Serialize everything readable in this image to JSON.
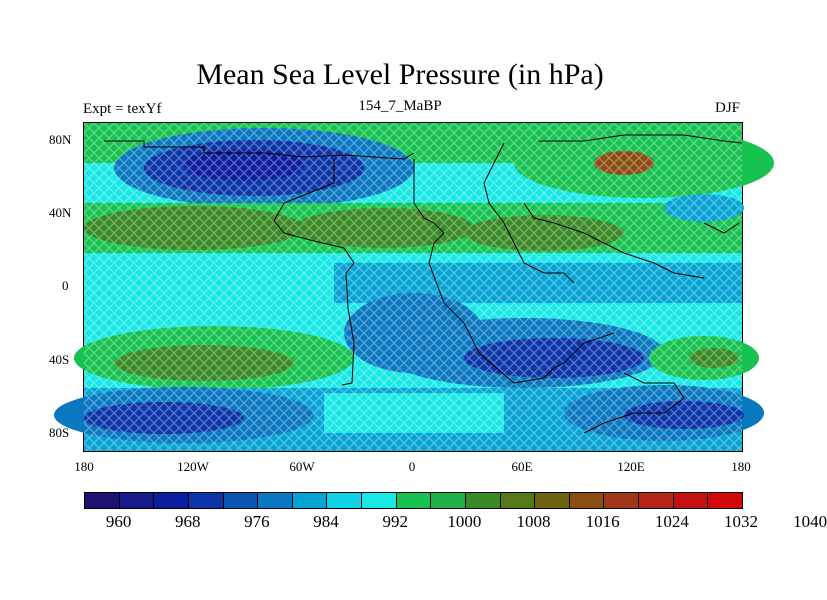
{
  "title": "Mean Sea Level Pressure (in hPa)",
  "subtitle_left": "Expt = texYf",
  "subtitle_center": "154_7_MaBP",
  "subtitle_right": "DJF",
  "y_ticks": [
    "80N",
    "40N",
    "0",
    "40S",
    "80S"
  ],
  "x_ticks": [
    "180",
    "120W",
    "60W",
    "0",
    "60E",
    "120E",
    "180"
  ],
  "colorbar": {
    "labels": [
      "960",
      "968",
      "976",
      "984",
      "992",
      "1000",
      "1008",
      "1016",
      "1024",
      "1032",
      "1040"
    ],
    "colors": [
      "#1c1470",
      "#18188c",
      "#0c1ea0",
      "#0b35a8",
      "#0a54b2",
      "#0a78c0",
      "#06a4d4",
      "#10d2e8",
      "#18e8e6",
      "#16c250",
      "#22b048",
      "#3a8a26",
      "#557818",
      "#6e6410",
      "#8a4e10",
      "#a0361a",
      "#b42418",
      "#c41010",
      "#d00808"
    ]
  },
  "colors": {
    "deep_low": "#0b35a8",
    "low": "#0a78c0",
    "mid_low": "#06a4d4",
    "mid": "#18e8e6",
    "high": "#16c250",
    "very_high": "#3a8a26",
    "peak": "#8a4e10"
  }
}
